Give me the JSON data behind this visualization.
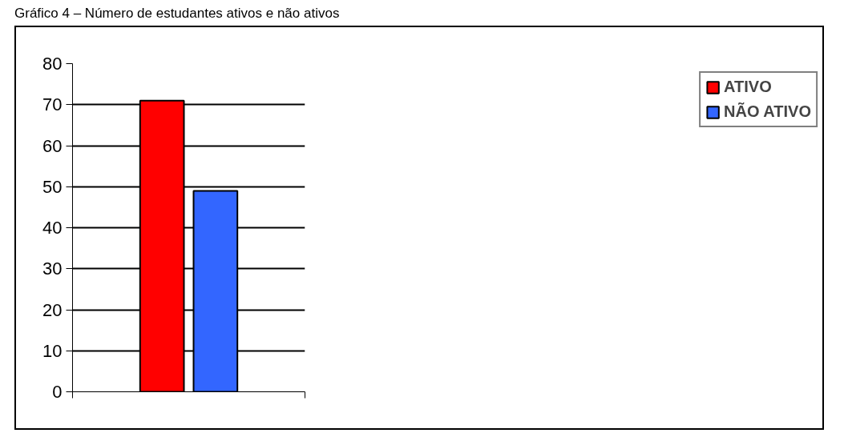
{
  "chart_data": {
    "type": "bar",
    "title": "Gráfico 4 – Número de estudantes ativos e não ativos",
    "categories": [
      null
    ],
    "series": [
      {
        "name": "ATIVO",
        "color": "#ff0000",
        "values": [
          71
        ]
      },
      {
        "name": "NÃO ATIVO",
        "color": "#3366ff",
        "values": [
          49
        ]
      }
    ],
    "ylim": [
      0,
      80
    ],
    "yticks": [
      0,
      10,
      20,
      30,
      40,
      50,
      60,
      70,
      80
    ],
    "grid": "y",
    "legend": "right",
    "tick_labels": "y"
  }
}
